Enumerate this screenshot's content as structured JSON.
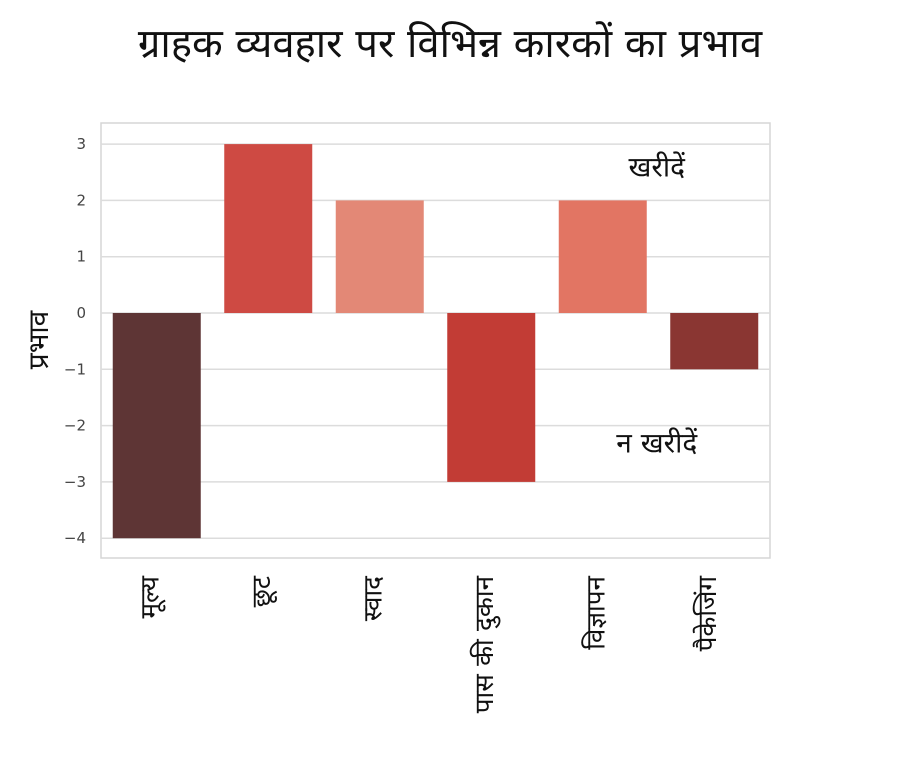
{
  "chart_data": {
    "type": "bar",
    "title": "ग्राहक व्यवहार पर विभिन्न कारकों का प्रभाव",
    "xlabel": "",
    "ylabel": "प्रभाव",
    "categories": [
      "मूल्य",
      "छूट",
      "स्वाद",
      "पास की दुकान",
      "विज्ञापन",
      "पैकेजिंग"
    ],
    "values": [
      -4,
      3,
      2,
      -3,
      2,
      -1
    ],
    "colors": [
      "#5e3535",
      "#ce4a43",
      "#e38876",
      "#c23c35",
      "#e27563",
      "#8a3632"
    ],
    "ylim": [
      -4.35,
      3.35
    ],
    "yticks": [
      3,
      2,
      1,
      0,
      -1,
      -2,
      -3,
      -4
    ],
    "ytick_labels": [
      "3",
      "2",
      "1",
      "0",
      "−1",
      "−2",
      "−3",
      "−4"
    ],
    "grid": true,
    "annotations": [
      {
        "text": "खरीदें",
        "x_category": "विज्ञापन",
        "y": 2.6
      },
      {
        "text": "न खरीदें",
        "x_category": "विज्ञापन",
        "y": -2.3
      }
    ]
  }
}
